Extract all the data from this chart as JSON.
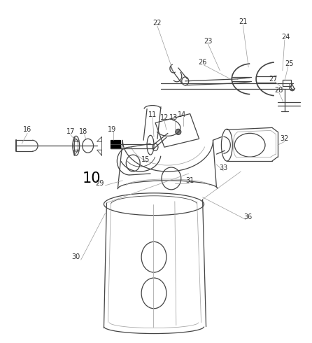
{
  "bg_color": "#ffffff",
  "lc": "#888888",
  "dc": "#444444",
  "lc2": "#aaaaaa",
  "label_fs": 7,
  "label_color": "#333333",
  "figsize": [
    4.46,
    4.9
  ],
  "dpi": 100
}
